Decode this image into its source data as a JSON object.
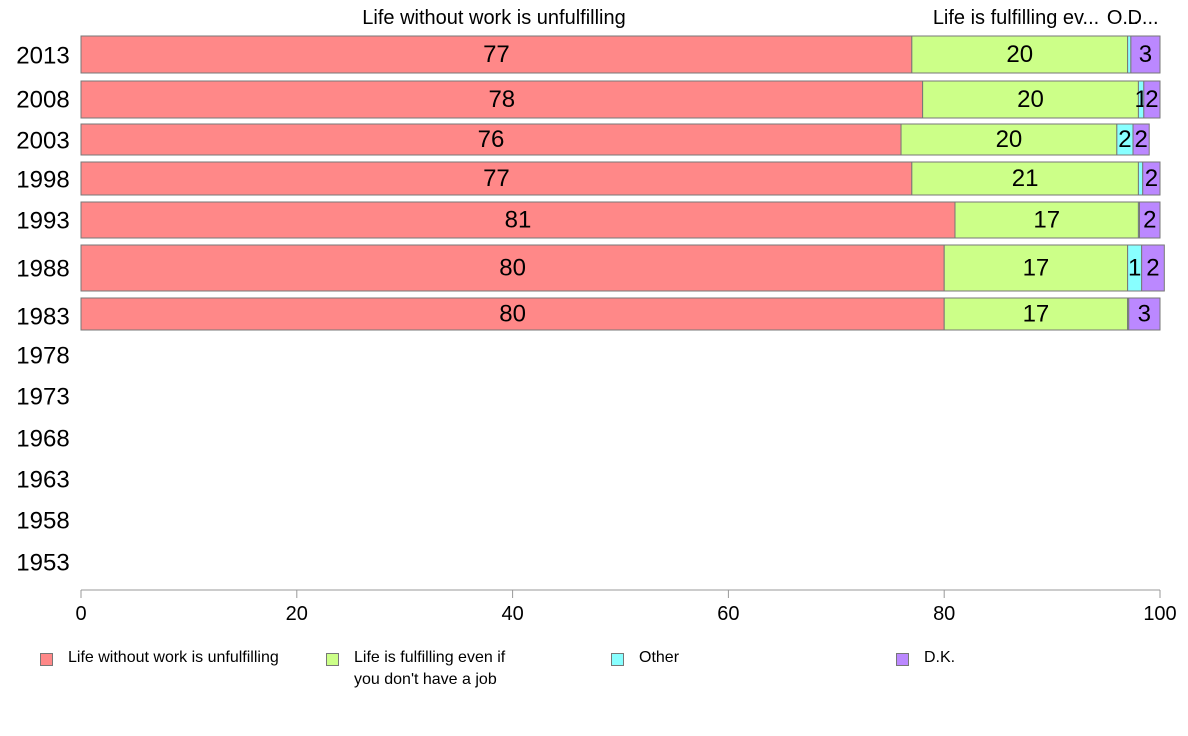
{
  "chart_data": {
    "type": "bar",
    "orientation": "horizontal",
    "stacked": true,
    "title": "",
    "xlabel": "",
    "ylabel": "",
    "xlim": [
      0,
      100
    ],
    "x_ticks": [
      0,
      20,
      40,
      60,
      80,
      100
    ],
    "grid": false,
    "legend_position": "bottom",
    "categories": [
      "2013",
      "2008",
      "2003",
      "1998",
      "1993",
      "1988",
      "1983",
      "1978",
      "1973",
      "1968",
      "1963",
      "1958",
      "1953"
    ],
    "column_headers": [
      "Life without work is unfulfilling",
      "Life is fulfilling ev...",
      "O...",
      "D..."
    ],
    "series": [
      {
        "name": "Life without work is unfulfilling",
        "color": "#ff8888",
        "values": [
          77,
          78,
          76,
          77,
          81,
          80,
          80,
          null,
          null,
          null,
          null,
          null,
          null
        ]
      },
      {
        "name": "Life is fulfilling even if you don't have a job",
        "color": "#ccff88",
        "values": [
          20,
          20,
          20,
          21,
          17,
          17,
          17,
          null,
          null,
          null,
          null,
          null,
          null
        ]
      },
      {
        "name": "Other",
        "color": "#88ffff",
        "values": [
          0.3,
          0.5,
          1.5,
          0.4,
          0.1,
          1.3,
          0.1,
          null,
          null,
          null,
          null,
          null,
          null
        ]
      },
      {
        "name": "D.K.",
        "color": "#bb88ff",
        "values": [
          2.7,
          1.5,
          1.5,
          1.6,
          1.9,
          2.1,
          2.9,
          null,
          null,
          null,
          null,
          null,
          null
        ]
      }
    ],
    "data_labels": [
      [
        "77",
        "20",
        "",
        "3"
      ],
      [
        "78",
        "20",
        "1",
        "2"
      ],
      [
        "76",
        "20",
        "2",
        "2"
      ],
      [
        "77",
        "21",
        "",
        "2"
      ],
      [
        "81",
        "17",
        "",
        "2"
      ],
      [
        "80",
        "17",
        "1",
        "2"
      ],
      [
        "80",
        "17",
        "",
        "3"
      ]
    ]
  },
  "legend": [
    {
      "label": "Life without work is unfulfilling",
      "color": "#ff8888"
    },
    {
      "label": "Life is fulfilling even if\nyou don't have a job",
      "color": "#ccff88"
    },
    {
      "label": "Other",
      "color": "#88ffff"
    },
    {
      "label": "D.K.",
      "color": "#bb88ff"
    }
  ]
}
